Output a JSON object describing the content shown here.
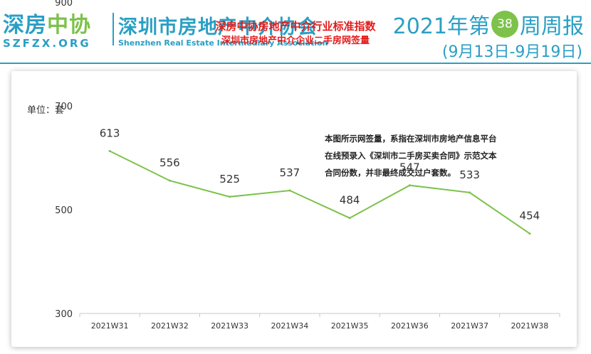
{
  "header": {
    "logo_text": "深房中协",
    "logo_sub": "SZFZX.ORG",
    "org_name": "深圳市房地产中介协会",
    "org_en": "Shenzhen Real Estate Intermediary Association",
    "report_prefix": "2021年第",
    "week_number": "38",
    "report_suffix": "周周报",
    "date_range": "(9月13日-9月19日)"
  },
  "chart_data": {
    "type": "line",
    "title": "深房中协房地产中介行业标准指数",
    "subtitle": "深圳市房地产中介企业二手房网签量",
    "unit": "单位：套",
    "note_lines": [
      "本图所示网签量，系指在深圳市房地产信息平台",
      "在线预录入《深圳市二手房买卖合同》示范文本",
      "合同份数，并非最终成交过户套数。"
    ],
    "categories": [
      "2021W31",
      "2021W32",
      "2021W33",
      "2021W34",
      "2021W35",
      "2021W36",
      "2021W37",
      "2021W38"
    ],
    "values": [
      613,
      556,
      525,
      537,
      484,
      547,
      533,
      454
    ],
    "yticks": [
      300,
      500,
      700,
      900
    ],
    "ylim": [
      300,
      1000
    ],
    "line_color": "#7dc24b",
    "grid": false
  }
}
